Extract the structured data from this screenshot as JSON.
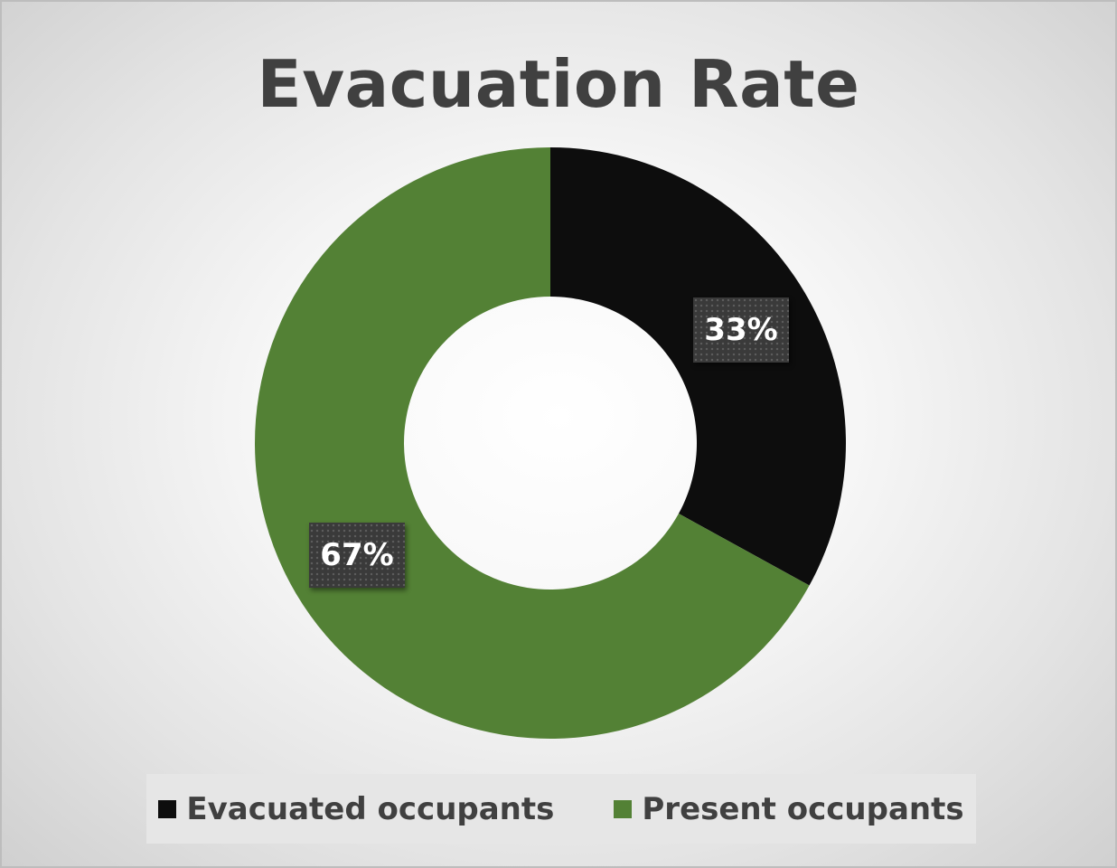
{
  "chart_data": {
    "type": "pie",
    "donut": true,
    "title": "Evacuation Rate",
    "series": [
      {
        "name": "Evacuated occupants",
        "value": 33,
        "label": "33%",
        "color": "#0d0d0d"
      },
      {
        "name": "Present occupants",
        "value": 67,
        "label": "67%",
        "color": "#538135"
      }
    ],
    "legend_position": "bottom"
  }
}
